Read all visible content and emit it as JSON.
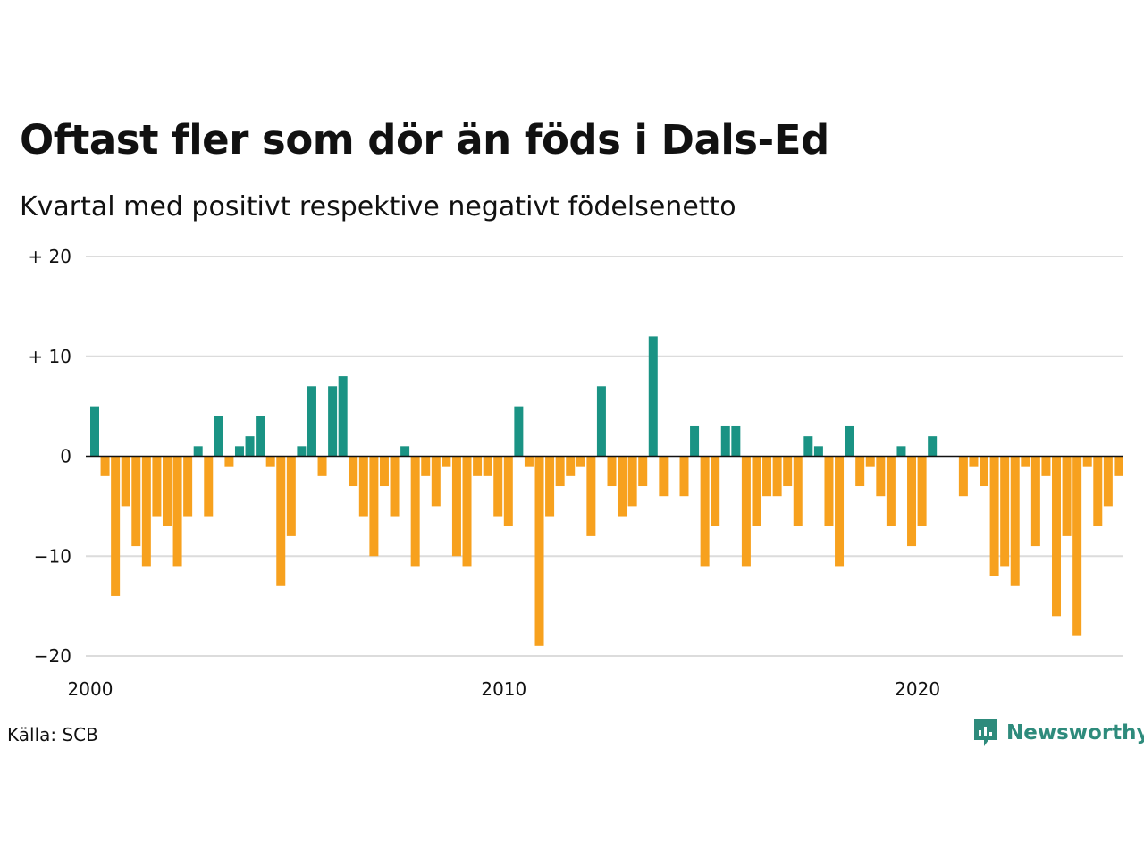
{
  "title": "Oftast fler som dör än föds i Dals-Ed",
  "subtitle": "Kvartal med positivt respektive negativt födelsenetto",
  "source": "Källa: SCB",
  "logo": {
    "name": "Newsworthy",
    "icon": "newsworthy-logo-icon"
  },
  "colors": {
    "positive": "#1a9384",
    "negative": "#f7a11e",
    "grid": "#dcdcdc",
    "zero": "#111111"
  },
  "chart_data": {
    "type": "bar",
    "title": "Oftast fler som dör än föds i Dals-Ed",
    "subtitle": "Kvartal med positivt respektive negativt födelsenetto",
    "x_start_year": 2000,
    "x_start_quarter": 1,
    "x_ticks": [
      "2000",
      "2010",
      "2020"
    ],
    "y_ticks": [
      {
        "value": 20,
        "label": "+ 20"
      },
      {
        "value": 10,
        "label": "+ 10"
      },
      {
        "value": 0,
        "label": "0"
      },
      {
        "value": -10,
        "label": "−10"
      },
      {
        "value": -20,
        "label": "−20"
      }
    ],
    "ylim": [
      -20,
      20
    ],
    "grid": true,
    "values": [
      5,
      -2,
      -14,
      -5,
      -9,
      -11,
      -6,
      -7,
      -11,
      -6,
      1,
      -6,
      4,
      -1,
      1,
      2,
      4,
      -1,
      -13,
      -8,
      1,
      7,
      -2,
      7,
      8,
      -3,
      -6,
      -10,
      -3,
      -6,
      1,
      -11,
      -2,
      -5,
      -1,
      -10,
      -11,
      -2,
      -2,
      -6,
      -7,
      5,
      -1,
      -19,
      -6,
      -3,
      -2,
      -1,
      -8,
      7,
      -3,
      -6,
      -5,
      -3,
      12,
      -4,
      0,
      -4,
      3,
      -11,
      -7,
      3,
      3,
      -11,
      -7,
      -4,
      -4,
      -3,
      -7,
      2,
      1,
      -7,
      -11,
      3,
      -3,
      -1,
      -4,
      -7,
      1,
      -9,
      -7,
      2,
      0,
      0,
      -4,
      -1,
      -3,
      -12,
      -11,
      -13,
      -1,
      -9,
      -2,
      -16,
      -8,
      -18,
      -1,
      -7,
      -5,
      -2
    ]
  }
}
